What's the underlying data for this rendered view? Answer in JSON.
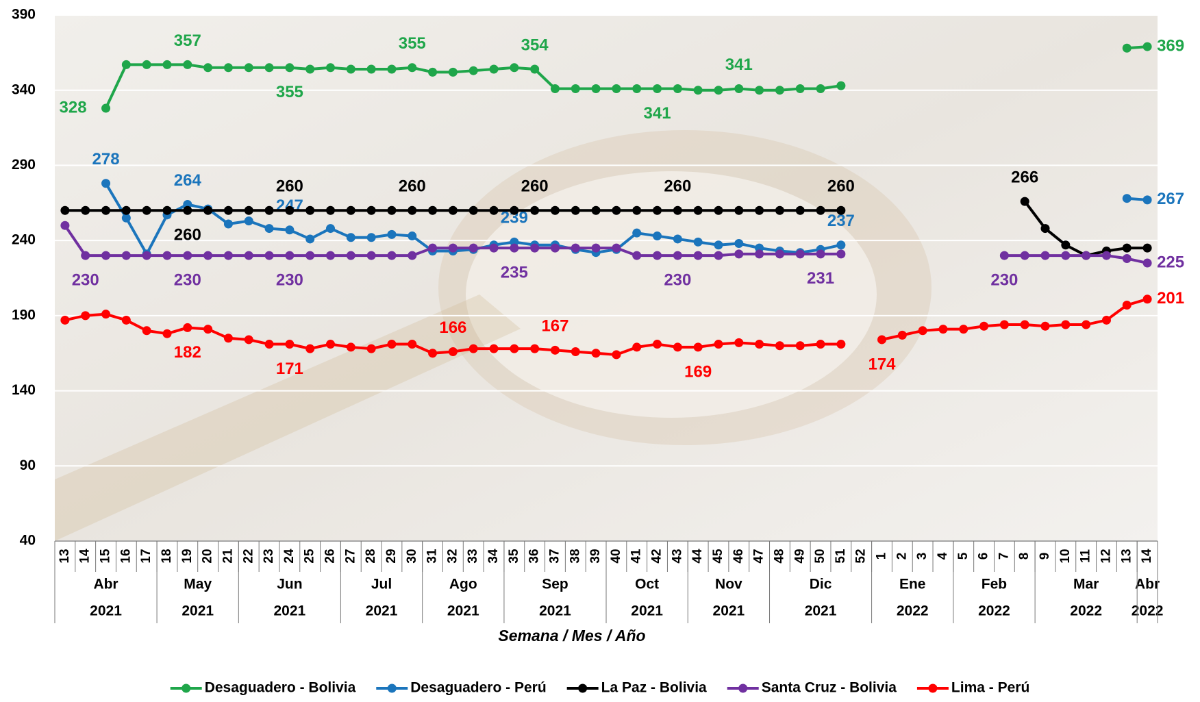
{
  "chart_data": {
    "type": "line",
    "x_label": "Semana / Mes / Año",
    "categories": [
      "13",
      "14",
      "15",
      "16",
      "17",
      "18",
      "19",
      "20",
      "21",
      "22",
      "23",
      "24",
      "25",
      "26",
      "27",
      "28",
      "29",
      "30",
      "31",
      "32",
      "33",
      "34",
      "35",
      "36",
      "37",
      "38",
      "39",
      "40",
      "41",
      "42",
      "43",
      "44",
      "45",
      "46",
      "47",
      "48",
      "49",
      "50",
      "51",
      "52",
      "1",
      "2",
      "3",
      "4",
      "5",
      "6",
      "7",
      "8",
      "9",
      "10",
      "11",
      "12",
      "13",
      "14"
    ],
    "x_groups": [
      {
        "month": "Abr",
        "year": "2021",
        "n": 5
      },
      {
        "month": "May",
        "year": "2021",
        "n": 4
      },
      {
        "month": "Jun",
        "year": "2021",
        "n": 5
      },
      {
        "month": "Jul",
        "year": "2021",
        "n": 4
      },
      {
        "month": "Ago",
        "year": "2021",
        "n": 4
      },
      {
        "month": "Sep",
        "year": "2021",
        "n": 5
      },
      {
        "month": "Oct",
        "year": "2021",
        "n": 4
      },
      {
        "month": "Nov",
        "year": "2021",
        "n": 4
      },
      {
        "month": "Dic",
        "year": "2021",
        "n": 5
      },
      {
        "month": "Ene",
        "year": "2022",
        "n": 4
      },
      {
        "month": "Feb",
        "year": "2022",
        "n": 4
      },
      {
        "month": "Mar",
        "year": "2022",
        "n": 5
      },
      {
        "month": "Abr",
        "year": "2022",
        "n": 1
      }
    ],
    "ylim": [
      40,
      390
    ],
    "yticks": [
      40,
      90,
      140,
      190,
      240,
      290,
      340,
      390
    ],
    "grid": true,
    "legend": "bottom",
    "series": [
      {
        "name": "Desaguadero - Bolivia",
        "color": "#1fa64a",
        "values": [
          null,
          null,
          328,
          357,
          357,
          357,
          357,
          355,
          355,
          355,
          355,
          355,
          354,
          355,
          354,
          354,
          354,
          355,
          352,
          352,
          353,
          354,
          355,
          354,
          341,
          341,
          341,
          341,
          341,
          341,
          341,
          340,
          340,
          341,
          340,
          340,
          341,
          341,
          343,
          null,
          null,
          null,
          null,
          null,
          null,
          null,
          null,
          null,
          null,
          null,
          null,
          null,
          368,
          369
        ],
        "value_labels": [
          null,
          null,
          "328",
          null,
          null,
          null,
          "357",
          null,
          null,
          null,
          null,
          "355",
          null,
          null,
          null,
          null,
          null,
          "355",
          null,
          null,
          null,
          null,
          null,
          "354",
          null,
          null,
          null,
          null,
          null,
          "341",
          null,
          null,
          null,
          "341",
          null,
          null,
          null,
          null,
          null,
          null,
          null,
          null,
          null,
          null,
          null,
          null,
          null,
          null,
          null,
          null,
          null,
          null,
          null,
          "369"
        ]
      },
      {
        "name": "Desaguadero - Perú",
        "color": "#1b75bc",
        "values": [
          null,
          null,
          278,
          255,
          231,
          257,
          264,
          261,
          251,
          253,
          248,
          247,
          241,
          248,
          242,
          242,
          244,
          243,
          233,
          233,
          234,
          237,
          239,
          237,
          237,
          234,
          232,
          234,
          245,
          243,
          241,
          239,
          237,
          238,
          235,
          233,
          232,
          234,
          237,
          null,
          null,
          null,
          null,
          null,
          null,
          null,
          null,
          null,
          null,
          null,
          null,
          null,
          268,
          267
        ],
        "value_labels": [
          null,
          null,
          "278",
          null,
          null,
          null,
          "264",
          null,
          null,
          null,
          null,
          "247",
          null,
          null,
          null,
          null,
          null,
          null,
          null,
          null,
          null,
          null,
          "239",
          null,
          null,
          null,
          null,
          null,
          null,
          null,
          null,
          null,
          null,
          null,
          null,
          null,
          null,
          null,
          "237",
          null,
          null,
          null,
          null,
          null,
          null,
          null,
          null,
          null,
          null,
          null,
          null,
          null,
          null,
          "267"
        ]
      },
      {
        "name": "La Paz - Bolivia",
        "color": "#000000",
        "values": [
          260,
          260,
          260,
          260,
          260,
          260,
          260,
          260,
          260,
          260,
          260,
          260,
          260,
          260,
          260,
          260,
          260,
          260,
          260,
          260,
          260,
          260,
          260,
          260,
          260,
          260,
          260,
          260,
          260,
          260,
          260,
          260,
          260,
          260,
          260,
          260,
          260,
          260,
          260,
          null,
          null,
          null,
          null,
          null,
          null,
          null,
          null,
          266,
          248,
          237,
          230,
          233,
          235,
          235
        ],
        "value_labels": [
          null,
          null,
          null,
          null,
          null,
          null,
          "260",
          null,
          null,
          null,
          null,
          "260",
          null,
          null,
          null,
          null,
          null,
          "260",
          null,
          null,
          null,
          null,
          null,
          "260",
          null,
          null,
          null,
          null,
          null,
          null,
          "260",
          null,
          null,
          null,
          null,
          null,
          null,
          null,
          "260",
          null,
          null,
          null,
          null,
          null,
          null,
          null,
          null,
          "266",
          null,
          null,
          null,
          null,
          null,
          null
        ]
      },
      {
        "name": "Santa Cruz - Bolivia",
        "color": "#7030a0",
        "values": [
          250,
          230,
          230,
          230,
          230,
          230,
          230,
          230,
          230,
          230,
          230,
          230,
          230,
          230,
          230,
          230,
          230,
          230,
          235,
          235,
          235,
          235,
          235,
          235,
          235,
          235,
          235,
          235,
          230,
          230,
          230,
          230,
          230,
          231,
          231,
          231,
          231,
          231,
          231,
          null,
          null,
          null,
          null,
          null,
          null,
          null,
          230,
          230,
          230,
          230,
          230,
          230,
          228,
          225
        ],
        "value_labels": [
          null,
          "230",
          null,
          null,
          null,
          null,
          "230",
          null,
          null,
          null,
          null,
          "230",
          null,
          null,
          null,
          null,
          null,
          null,
          null,
          null,
          null,
          null,
          "235",
          null,
          null,
          null,
          null,
          null,
          null,
          null,
          "230",
          null,
          null,
          null,
          null,
          null,
          null,
          "231",
          null,
          null,
          null,
          null,
          null,
          null,
          null,
          null,
          "230",
          null,
          null,
          null,
          null,
          null,
          null,
          "225"
        ]
      },
      {
        "name": "Lima - Perú",
        "color": "#ff0000",
        "values": [
          187,
          190,
          191,
          187,
          180,
          178,
          182,
          181,
          175,
          174,
          171,
          171,
          168,
          171,
          169,
          168,
          171,
          171,
          165,
          166,
          168,
          168,
          168,
          168,
          167,
          166,
          165,
          164,
          169,
          171,
          169,
          169,
          171,
          172,
          171,
          170,
          170,
          171,
          171,
          null,
          174,
          177,
          180,
          181,
          181,
          183,
          184,
          184,
          183,
          184,
          184,
          187,
          197,
          201
        ],
        "value_labels": [
          null,
          null,
          null,
          null,
          null,
          null,
          "182",
          null,
          null,
          null,
          null,
          "171",
          null,
          null,
          null,
          null,
          null,
          null,
          null,
          "166",
          null,
          null,
          null,
          null,
          "167",
          null,
          null,
          null,
          null,
          null,
          null,
          "169",
          null,
          null,
          null,
          null,
          null,
          null,
          null,
          null,
          "174",
          null,
          null,
          null,
          null,
          null,
          null,
          null,
          null,
          null,
          null,
          null,
          null,
          "201"
        ]
      }
    ]
  }
}
